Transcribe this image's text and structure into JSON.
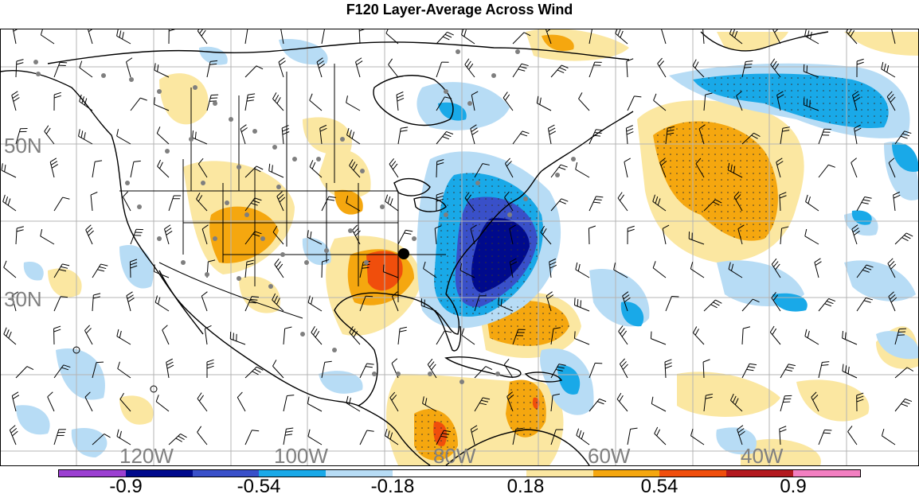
{
  "title": "F120 Layer-Average Across Wind",
  "lat_labels": [
    "50N",
    "30N"
  ],
  "lon_labels": [
    "120W",
    "100W",
    "80W",
    "60W",
    "40W"
  ],
  "colorbar": {
    "colors": [
      "#9b3fd1",
      "#000a8c",
      "#3950c9",
      "#19a9e8",
      "#b7dcf5",
      "#ffffff",
      "#ffffff",
      "#fbe7a1",
      "#f5a70f",
      "#f04e0c",
      "#b3191f",
      "#f27fc1"
    ],
    "labels": [
      "-0.9",
      "-0.54",
      "-0.18",
      "0.18",
      "0.54",
      "0.9"
    ]
  },
  "colors": {
    "grid": "#b4b4b4",
    "coast": "#000000",
    "station": "#7f7f7f"
  }
}
